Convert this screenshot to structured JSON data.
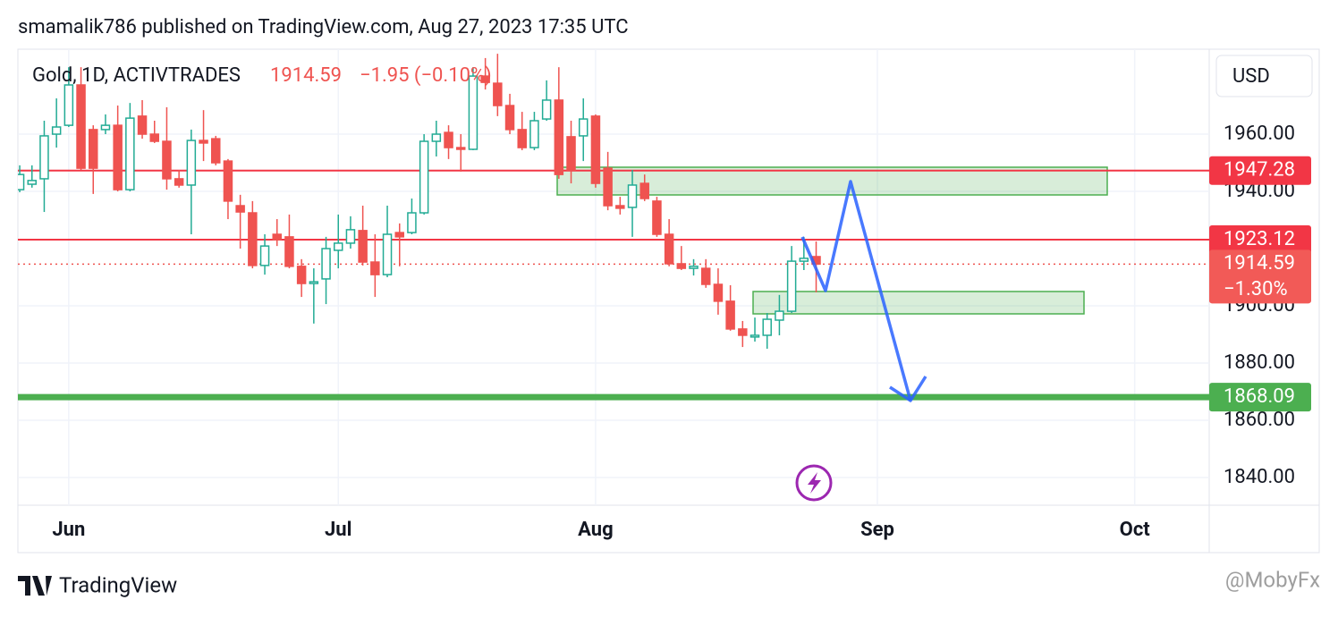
{
  "page": {
    "publisher_line": "smamalik786 published on TradingView.com, Aug 27, 2023 17:35 UTC",
    "brand": "TradingView",
    "watermark": "@MobyFx",
    "currency": "USD"
  },
  "chart_data": {
    "type": "candlestick",
    "title": "Gold, 1D, ACTIVTRADES",
    "last_price": 1914.59,
    "change_label": "−1.95 (−0.10%)",
    "last_change_label": "−1.30%",
    "up_color": "#22ab94",
    "down_color": "#ef5350",
    "open": [
      1940.6,
      1942.5,
      1944.4,
      1960,
      1963.1,
      1977.2,
      1961.6,
      1961.6,
      1963.1,
      1940.6,
      1966.3,
      1960,
      1957.5,
      1944.4,
      1942.2,
      1957.8,
      1958.4,
      1950.6,
      1935,
      1932.5,
      1914.1,
      1925,
      1924.1,
      1913.8,
      1907.8,
      1909.4,
      1919.4,
      1921.9,
      1926.3,
      1915.3,
      1910.9,
      1925.6,
      1925.6,
      1932.5,
      1957.5,
      1960.6,
      1955.3,
      1954.7,
      1980.3,
      1977.8,
      1970,
      1961.6,
      1955.3,
      1965.3,
      1971.9,
      1959.1,
      1959.4,
      1966.3,
      1948.1,
      1935,
      1934.4,
      1942.8,
      1936.6,
      1925,
      1914.7,
      1913.1,
      1913.1,
      1907.5,
      1901.6,
      1891.9,
      1889.1,
      1889.7,
      1895,
      1898.1,
      1915.6,
      1917.2
    ],
    "high": [
      1949.1,
      1949.1,
      1964.7,
      1972.5,
      1983.4,
      1983.4,
      1963.1,
      1966.9,
      1970,
      1970.9,
      1971.9,
      1964.7,
      1969.4,
      1947.5,
      1961.6,
      1968.4,
      1959.4,
      1951.3,
      1938.8,
      1936.6,
      1925,
      1930.3,
      1931.9,
      1916.3,
      1913.1,
      1924.1,
      1931.9,
      1931.3,
      1935,
      1925,
      1935,
      1928.8,
      1937.5,
      1960,
      1964.7,
      1963.1,
      1960,
      1983.4,
      1986.6,
      1988.1,
      1974.1,
      1967.8,
      1967.8,
      1978.8,
      1983.4,
      1964.7,
      1972.5,
      1966.9,
      1953.8,
      1938.1,
      1947.5,
      1945.9,
      1938.1,
      1930.3,
      1920.9,
      1916.3,
      1916.3,
      1913.1,
      1907.2,
      1894.7,
      1895.9,
      1897.5,
      1903.8,
      1920.9,
      1924.1,
      1922.5
    ],
    "low": [
      1939.7,
      1941.3,
      1932.8,
      1955.3,
      1962.5,
      1947.5,
      1939.1,
      1960,
      1940,
      1940,
      1958.4,
      1956.9,
      1940.6,
      1941.3,
      1925,
      1950.6,
      1949.1,
      1930.3,
      1920,
      1913.1,
      1910.9,
      1920.9,
      1913.1,
      1903.1,
      1893.8,
      1900.6,
      1913.1,
      1920,
      1914.1,
      1903.1,
      1910,
      1913.8,
      1925,
      1931.9,
      1952.2,
      1951.3,
      1946.9,
      1954.4,
      1975.6,
      1966.3,
      1960,
      1954.4,
      1954.4,
      1964.7,
      1944.4,
      1942.8,
      1950.6,
      1941.3,
      1933.4,
      1931.9,
      1924.1,
      1936.6,
      1924.1,
      1913.8,
      1912.5,
      1910.6,
      1906.3,
      1896.9,
      1891.3,
      1885.6,
      1887.5,
      1885,
      1889.7,
      1897.5,
      1912.5,
      1904.7
    ],
    "close": [
      1945.9,
      1943.8,
      1959.4,
      1962.5,
      1977.2,
      1948.1,
      1948.1,
      1963.1,
      1940.6,
      1965.6,
      1960,
      1957.5,
      1944.4,
      1942.2,
      1957.8,
      1956.9,
      1950,
      1936.6,
      1932.8,
      1914.1,
      1920.9,
      1923.1,
      1913.8,
      1907.8,
      1908.4,
      1920,
      1921.9,
      1926.6,
      1915.3,
      1910.9,
      1925,
      1924.1,
      1932.5,
      1957.5,
      1960,
      1955.3,
      1954.7,
      1980.3,
      1978.1,
      1970,
      1961.6,
      1955.3,
      1964.7,
      1971.9,
      1945.9,
      1947.5,
      1965.3,
      1942.8,
      1935,
      1934.1,
      1942.2,
      1937.5,
      1925,
      1914.7,
      1913.1,
      1913.8,
      1907.5,
      1901.6,
      1891.9,
      1889.7,
      1889.7,
      1895.3,
      1898.1,
      1915.6,
      1916.6,
      1914.59
    ],
    "levels": [
      {
        "value": 1947.28,
        "color": "#f23645"
      },
      {
        "value": 1923.12,
        "color": "#f23645"
      },
      {
        "value": 1868.09,
        "color": "#4caf50"
      }
    ],
    "xlim": [
      -0.15,
      97.08
    ],
    "xticks": [
      {
        "value": 4,
        "label": "Jun"
      },
      {
        "value": 26,
        "label": "Jul"
      },
      {
        "value": 47,
        "label": "Aug"
      },
      {
        "value": 70,
        "label": "Sep"
      },
      {
        "value": 91,
        "label": "Oct"
      }
    ],
    "ylim": [
      1830.3,
      1989.7
    ],
    "yticks": [
      {
        "value": 1960,
        "label": "1960.00"
      },
      {
        "value": 1940,
        "label": "1940.00"
      },
      {
        "value": 1900,
        "label": "1900.00"
      },
      {
        "value": 1880,
        "label": "1880.00"
      },
      {
        "value": 1860,
        "label": "1860.00"
      },
      {
        "value": 1840,
        "label": "1840.00"
      }
    ],
    "grid": true
  }
}
